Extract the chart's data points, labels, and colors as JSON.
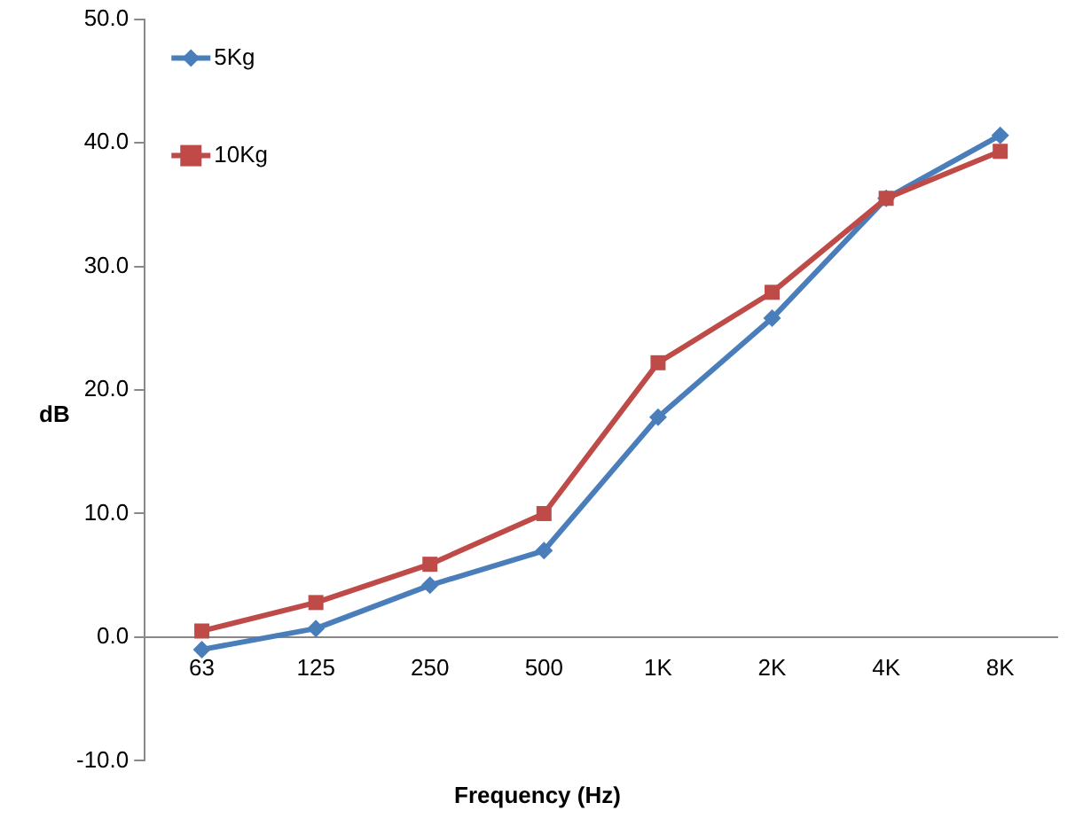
{
  "chart_data": {
    "type": "line",
    "xlabel": "Frequency (Hz)",
    "ylabel": "dB",
    "categories": [
      "63",
      "125",
      "250",
      "500",
      "1K",
      "2K",
      "4K",
      "8K"
    ],
    "series": [
      {
        "name": "5Kg",
        "color": "#4a7ebb",
        "marker": "diamond",
        "values": [
          -1.0,
          0.7,
          4.2,
          7.0,
          17.8,
          25.8,
          35.5,
          40.6
        ]
      },
      {
        "name": "10Kg",
        "color": "#be4b48",
        "marker": "square",
        "values": [
          0.5,
          2.8,
          5.9,
          10.0,
          22.2,
          27.9,
          35.5,
          39.3
        ]
      }
    ],
    "ylim": [
      -10,
      50
    ],
    "yticks": [
      {
        "value": -10,
        "label": "-10.0"
      },
      {
        "value": 0,
        "label": "0.0"
      },
      {
        "value": 10,
        "label": "10.0"
      },
      {
        "value": 20,
        "label": "20.0"
      },
      {
        "value": 30,
        "label": "30.0"
      },
      {
        "value": 40,
        "label": "40.0"
      },
      {
        "value": 50,
        "label": "50.0"
      }
    ],
    "grid": false,
    "legend": "top left",
    "line_style": "solid"
  }
}
